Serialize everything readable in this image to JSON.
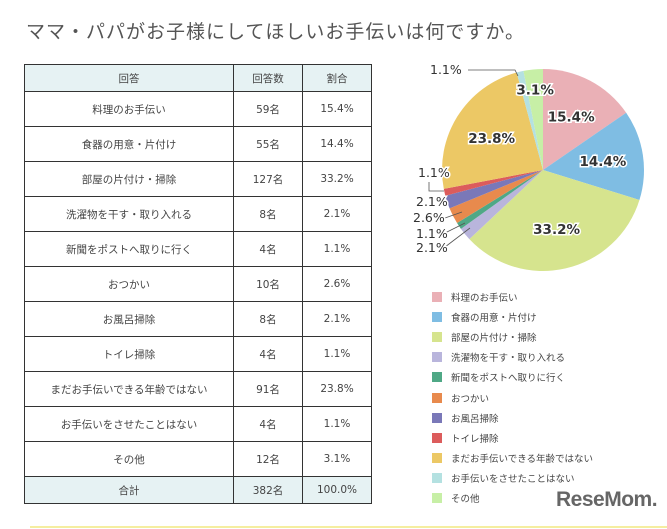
{
  "title": "ママ・パパがお子様にしてほしいお手伝いは何ですか。",
  "table": {
    "headers": [
      "回答",
      "回答数",
      "割合"
    ],
    "rows": [
      [
        "料理のお手伝い",
        "59名",
        "15.4%"
      ],
      [
        "食器の用意・片付け",
        "55名",
        "14.4%"
      ],
      [
        "部屋の片付け・掃除",
        "127名",
        "33.2%"
      ],
      [
        "洗濯物を干す・取り入れる",
        "8名",
        "2.1%"
      ],
      [
        "新聞をポストへ取りに行く",
        "4名",
        "1.1%"
      ],
      [
        "おつかい",
        "10名",
        "2.6%"
      ],
      [
        "お風呂掃除",
        "8名",
        "2.1%"
      ],
      [
        "トイレ掃除",
        "4名",
        "1.1%"
      ],
      [
        "まだお手伝いできる年齢ではない",
        "91名",
        "23.8%"
      ],
      [
        "お手伝いをさせたことはない",
        "4名",
        "1.1%"
      ],
      [
        "その他",
        "12名",
        "3.1%"
      ]
    ],
    "total": [
      "合計",
      "382名",
      "100.0%"
    ]
  },
  "chart_data": {
    "type": "pie",
    "start": "12 o'clock, clockwise",
    "legend_position": "bottom",
    "categories": [
      "料理のお手伝い",
      "食器の用意・片付け",
      "部屋の片付け・掃除",
      "洗濯物を干す・取り入れる",
      "新聞をポストへ取りに行く",
      "おつかい",
      "お風呂掃除",
      "トイレ掃除",
      "まだお手伝いできる年齢ではない",
      "お手伝いをさせたことはない",
      "その他"
    ],
    "values": [
      15.4,
      14.4,
      33.2,
      2.1,
      1.1,
      2.6,
      2.1,
      1.1,
      23.8,
      1.1,
      3.1
    ],
    "labels": [
      "15.4%",
      "14.4%",
      "33.2%",
      "2.1%",
      "1.1%",
      "2.6%",
      "2.1%",
      "1.1%",
      "23.8%",
      "1.1%",
      "3.1%"
    ],
    "colors": [
      "#eab0b6",
      "#7fbde3",
      "#d6e48e",
      "#b9b5dc",
      "#4fa886",
      "#e88a4d",
      "#7a78b8",
      "#dc5c5c",
      "#ecc865",
      "#b4e1e1",
      "#c7efa6"
    ]
  },
  "logo": "ReseMom"
}
